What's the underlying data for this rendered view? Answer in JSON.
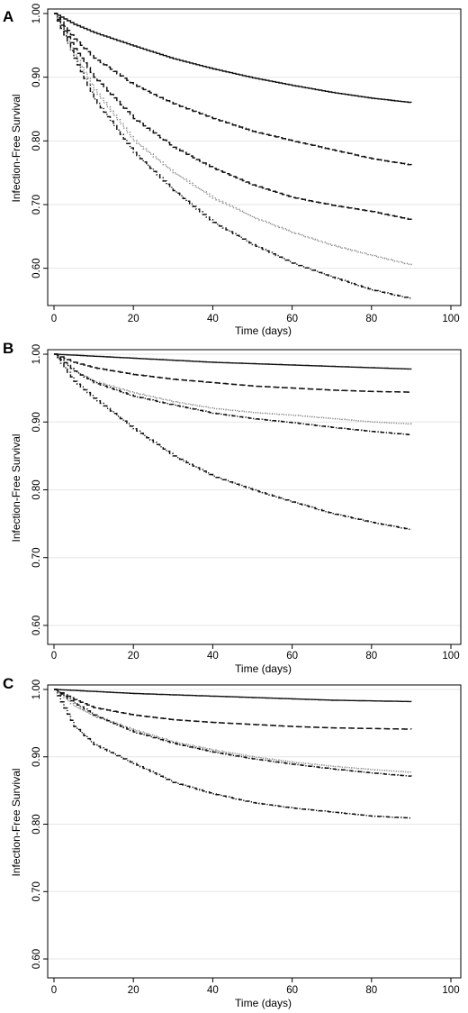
{
  "chart_data": [
    {
      "panel": "A",
      "type": "line",
      "xlabel": "Time (days)",
      "ylabel": "Infection-Free Survival",
      "xlim": [
        0,
        100
      ],
      "ylim": [
        0.55,
        1.0
      ],
      "x_ticks": [
        0,
        20,
        40,
        60,
        80,
        100
      ],
      "y_ticks": [
        0.6,
        0.7,
        0.8,
        0.9,
        1.0
      ],
      "y_tick_labels": [
        "0.60",
        "0.70",
        "0.80",
        "0.90",
        "1.00"
      ],
      "grid": true,
      "series": [
        {
          "style": "solid",
          "x": [
            0,
            5,
            10,
            20,
            30,
            40,
            50,
            60,
            70,
            80,
            90
          ],
          "values": [
            1.0,
            0.983,
            0.97,
            0.949,
            0.929,
            0.913,
            0.899,
            0.887,
            0.876,
            0.867,
            0.86
          ]
        },
        {
          "style": "dash",
          "x": [
            0,
            5,
            10,
            20,
            30,
            40,
            50,
            60,
            70,
            80,
            90
          ],
          "values": [
            1.0,
            0.96,
            0.93,
            0.888,
            0.858,
            0.835,
            0.815,
            0.8,
            0.786,
            0.772,
            0.762
          ]
        },
        {
          "style": "dash",
          "x": [
            0,
            5,
            10,
            20,
            30,
            40,
            50,
            60,
            70,
            80,
            90
          ],
          "values": [
            1.0,
            0.945,
            0.9,
            0.835,
            0.79,
            0.757,
            0.731,
            0.711,
            0.699,
            0.689,
            0.676
          ]
        },
        {
          "style": "dot",
          "x": [
            0,
            5,
            10,
            20,
            30,
            40,
            50,
            60,
            70,
            80,
            90
          ],
          "values": [
            1.0,
            0.935,
            0.88,
            0.8,
            0.75,
            0.71,
            0.68,
            0.656,
            0.636,
            0.62,
            0.605
          ]
        },
        {
          "style": "dashdot",
          "x": [
            0,
            5,
            10,
            20,
            30,
            40,
            50,
            60,
            70,
            80,
            90
          ],
          "values": [
            1.0,
            0.93,
            0.866,
            0.782,
            0.722,
            0.672,
            0.637,
            0.608,
            0.586,
            0.566,
            0.552
          ]
        }
      ]
    },
    {
      "panel": "B",
      "type": "line",
      "xlabel": "Time (days)",
      "ylabel": "Infection-Free Survival",
      "xlim": [
        0,
        100
      ],
      "ylim": [
        0.58,
        1.0
      ],
      "x_ticks": [
        0,
        20,
        40,
        60,
        80,
        100
      ],
      "y_ticks": [
        0.6,
        0.7,
        0.8,
        0.9,
        1.0
      ],
      "y_tick_labels": [
        "0.60",
        "0.70",
        "0.80",
        "0.90",
        "1.00"
      ],
      "grid": true,
      "series": [
        {
          "style": "solid",
          "x": [
            0,
            10,
            20,
            30,
            40,
            50,
            60,
            70,
            80,
            90
          ],
          "values": [
            1.0,
            0.997,
            0.994,
            0.991,
            0.988,
            0.986,
            0.984,
            0.982,
            0.98,
            0.978
          ]
        },
        {
          "style": "dash",
          "x": [
            0,
            5,
            10,
            20,
            30,
            40,
            50,
            60,
            70,
            80,
            90
          ],
          "values": [
            1.0,
            0.988,
            0.98,
            0.97,
            0.963,
            0.958,
            0.953,
            0.95,
            0.947,
            0.945,
            0.944
          ]
        },
        {
          "style": "dot",
          "x": [
            0,
            5,
            10,
            20,
            30,
            40,
            50,
            60,
            70,
            80,
            90
          ],
          "values": [
            1.0,
            0.975,
            0.96,
            0.943,
            0.93,
            0.92,
            0.914,
            0.91,
            0.905,
            0.9,
            0.897
          ]
        },
        {
          "style": "dashdot",
          "x": [
            0,
            5,
            10,
            20,
            30,
            40,
            50,
            60,
            70,
            80,
            90
          ],
          "values": [
            1.0,
            0.975,
            0.958,
            0.938,
            0.925,
            0.913,
            0.905,
            0.899,
            0.892,
            0.886,
            0.881
          ]
        },
        {
          "style": "dashdot",
          "x": [
            0,
            5,
            10,
            20,
            30,
            40,
            50,
            60,
            70,
            80,
            90
          ],
          "values": [
            1.0,
            0.96,
            0.935,
            0.89,
            0.85,
            0.82,
            0.8,
            0.782,
            0.765,
            0.752,
            0.741
          ]
        }
      ]
    },
    {
      "panel": "C",
      "type": "line",
      "xlabel": "Time (days)",
      "ylabel": "Infection-Free Survival",
      "xlim": [
        0,
        100
      ],
      "ylim": [
        0.58,
        1.0
      ],
      "x_ticks": [
        0,
        20,
        40,
        60,
        80,
        100
      ],
      "y_ticks": [
        0.6,
        0.7,
        0.8,
        0.9,
        1.0
      ],
      "y_tick_labels": [
        "0.60",
        "0.70",
        "0.80",
        "0.90",
        "1.00"
      ],
      "grid": true,
      "series": [
        {
          "style": "solid",
          "x": [
            0,
            10,
            20,
            30,
            40,
            50,
            60,
            70,
            80,
            90
          ],
          "values": [
            1.0,
            0.997,
            0.994,
            0.992,
            0.99,
            0.988,
            0.986,
            0.984,
            0.983,
            0.982
          ]
        },
        {
          "style": "dash",
          "x": [
            0,
            5,
            10,
            20,
            30,
            40,
            50,
            60,
            70,
            80,
            90
          ],
          "values": [
            1.0,
            0.985,
            0.973,
            0.962,
            0.955,
            0.951,
            0.948,
            0.945,
            0.943,
            0.942,
            0.941
          ]
        },
        {
          "style": "dot",
          "x": [
            0,
            5,
            10,
            20,
            30,
            40,
            50,
            60,
            70,
            80,
            90
          ],
          "values": [
            1.0,
            0.975,
            0.96,
            0.94,
            0.922,
            0.91,
            0.9,
            0.892,
            0.886,
            0.881,
            0.877
          ]
        },
        {
          "style": "dashdot",
          "x": [
            0,
            5,
            10,
            20,
            30,
            40,
            50,
            60,
            70,
            80,
            90
          ],
          "values": [
            1.0,
            0.98,
            0.962,
            0.937,
            0.92,
            0.907,
            0.897,
            0.889,
            0.882,
            0.876,
            0.871
          ]
        },
        {
          "style": "dashdot",
          "x": [
            0,
            5,
            10,
            20,
            30,
            40,
            50,
            60,
            70,
            80,
            90
          ],
          "values": [
            1.0,
            0.945,
            0.918,
            0.89,
            0.862,
            0.845,
            0.832,
            0.824,
            0.818,
            0.812,
            0.809
          ]
        }
      ]
    }
  ]
}
